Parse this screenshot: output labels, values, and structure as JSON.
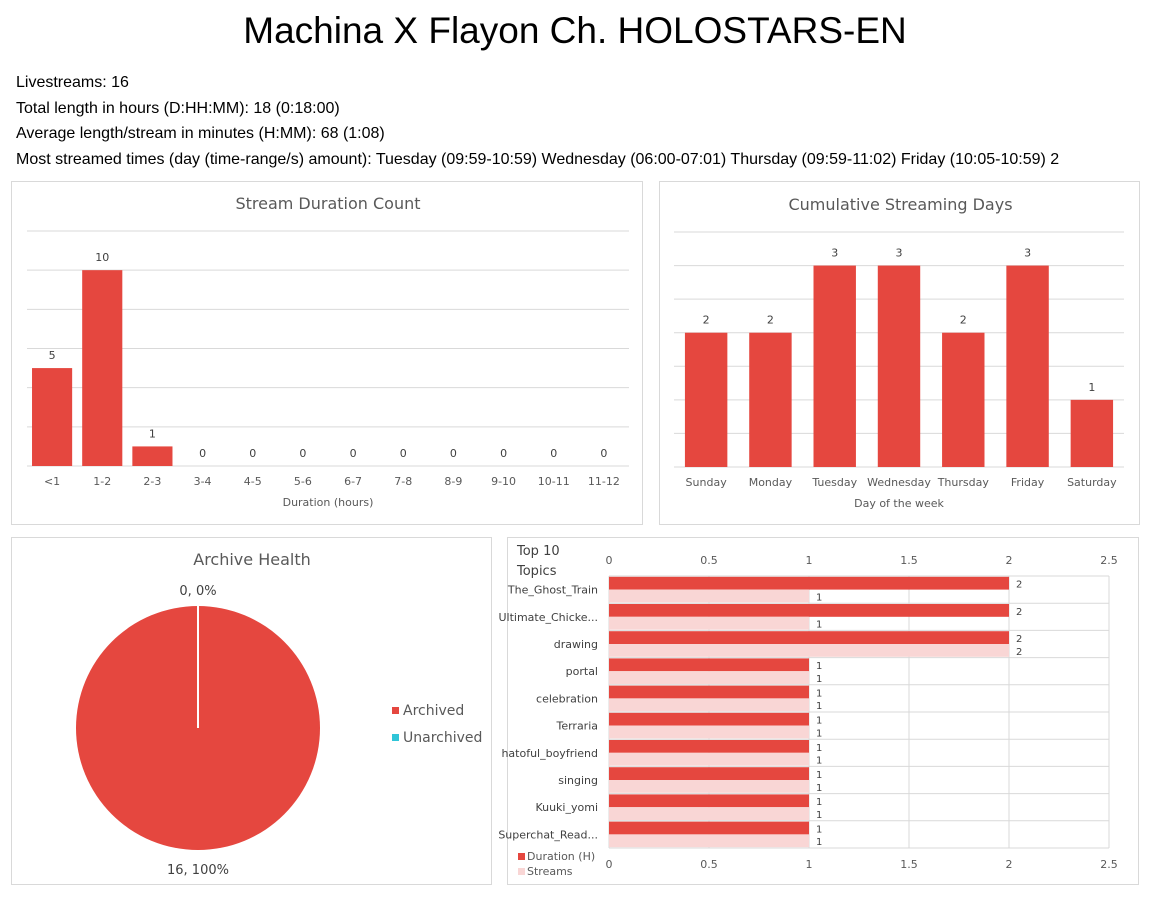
{
  "page": {
    "title": "Machina X Flayon Ch. HOLOSTARS-EN",
    "stats": [
      "Livestreams: 16",
      "Total length in hours (D:HH:MM): 18 (0:18:00)",
      "Average length/stream in minutes (H:MM): 68 (1:08)",
      "Most streamed times (day (time-range/s) amount): Tuesday (09:59-10:59) Wednesday (06:00-07:01) Thursday (09:59-11:02) Friday (10:05-10:59) 2"
    ]
  },
  "colors": {
    "bar": "#e5473f",
    "bar_light": "#f9d6d5",
    "grid": "#d9d9d9",
    "text": "#595959",
    "unarchived": "#2fc5d8"
  },
  "chart_data": [
    {
      "type": "bar",
      "title": "Stream Duration Count",
      "xlabel": "Duration (hours)",
      "ylabel": "",
      "categories": [
        "<1",
        "1-2",
        "2-3",
        "3-4",
        "4-5",
        "5-6",
        "6-7",
        "7-8",
        "8-9",
        "9-10",
        "10-11",
        "11-12"
      ],
      "values": [
        5,
        10,
        1,
        0,
        0,
        0,
        0,
        0,
        0,
        0,
        0,
        0
      ],
      "ylim": [
        0,
        12
      ],
      "grid": true,
      "data_labels": true
    },
    {
      "type": "bar",
      "title": "Cumulative Streaming Days",
      "xlabel": "Day of the week",
      "ylabel": "",
      "categories": [
        "Sunday",
        "Monday",
        "Tuesday",
        "Wednesday",
        "Thursday",
        "Friday",
        "Saturday"
      ],
      "values": [
        2,
        2,
        3,
        3,
        2,
        3,
        1
      ],
      "ylim": [
        0,
        3.5
      ],
      "grid": true,
      "data_labels": true
    },
    {
      "type": "pie",
      "title": "Archive Health",
      "slices": [
        {
          "name": "Archived",
          "value": 16,
          "label": "16, 100%"
        },
        {
          "name": "Unarchived",
          "value": 0,
          "label": "0, 0%"
        }
      ],
      "legend": "right"
    },
    {
      "type": "bar",
      "orientation": "horizontal",
      "title": "Top 10 Topics",
      "categories": [
        "The_Ghost_Train",
        "Ultimate_Chicke...",
        "drawing",
        "portal",
        "celebration",
        "Terraria",
        "hatoful_boyfriend",
        "singing",
        "Kuuki_yomi",
        "Superchat_Read..."
      ],
      "series": [
        {
          "name": "Duration (H)",
          "values": [
            2,
            2,
            2,
            1,
            1,
            1,
            1,
            1,
            1,
            1
          ]
        },
        {
          "name": "Streams",
          "values": [
            1,
            1,
            2,
            1,
            1,
            1,
            1,
            1,
            1,
            1
          ]
        }
      ],
      "xlim": [
        0,
        2.5
      ],
      "xticks": [
        "0",
        "0.5",
        "1",
        "1.5",
        "2",
        "2.5"
      ],
      "grid": true,
      "legend": "bottom-left",
      "data_labels": true
    }
  ]
}
